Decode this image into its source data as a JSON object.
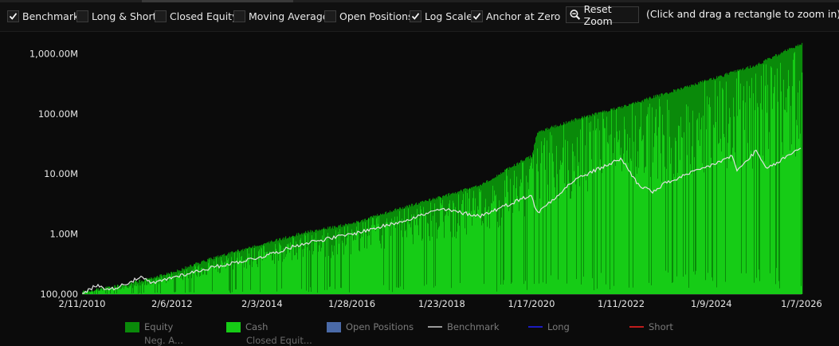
{
  "toolbar": {
    "options": [
      {
        "label": "Benchmark",
        "checked": true
      },
      {
        "label": "Long & Short",
        "checked": false
      },
      {
        "label": "Closed Equity",
        "checked": false
      },
      {
        "label": "Moving Average",
        "checked": false
      },
      {
        "label": "Open Positions",
        "checked": false
      },
      {
        "label": "Log Scale",
        "checked": true
      },
      {
        "label": "Anchor at Zero",
        "checked": true
      }
    ],
    "reset_zoom_label": "Reset Zoom",
    "hint": "(Click and drag a rectangle to zoom in)"
  },
  "legend": {
    "items": [
      {
        "label": "Equity",
        "color": "#0a8a0a",
        "kind": "swatch"
      },
      {
        "label": "Cash",
        "color": "#16cc16",
        "kind": "swatch"
      },
      {
        "label": "Open Positions",
        "color": "#4a6aa8",
        "kind": "swatch"
      },
      {
        "label": "Benchmark",
        "color": "#9a9a9a",
        "kind": "line"
      },
      {
        "label": "Long",
        "color": "#1c1cc0",
        "kind": "line"
      },
      {
        "label": "Short",
        "color": "#c01c1c",
        "kind": "line"
      }
    ],
    "second_row": [
      "Neg. A...",
      "Closed Equit..."
    ]
  },
  "chart_data": {
    "type": "area",
    "title": "",
    "xlabel": "",
    "ylabel": "",
    "y_scale": "log",
    "ylim": [
      100000,
      1600000000
    ],
    "y_ticks": [
      100000,
      1000000,
      10000000,
      100000000,
      1000000000
    ],
    "y_tick_labels": [
      "100,000",
      "1.00M",
      "10.00M",
      "100.00M",
      "1,000.00M"
    ],
    "x_tick_labels": [
      "2/11/2010",
      "2/6/2012",
      "2/3/2014",
      "1/28/2016",
      "1/23/2018",
      "1/17/2020",
      "1/11/2022",
      "1/9/2024",
      "1/7/2026"
    ],
    "grid": false,
    "colors": {
      "equity": "#0a8a0a",
      "cash": "#16cc16",
      "benchmark": "#e0e0e0"
    },
    "series": [
      {
        "name": "Equity",
        "x": [
          "2/11/2010",
          "1/2011",
          "2/6/2012",
          "1/2013",
          "2/3/2014",
          "1/2015",
          "1/28/2016",
          "1/2017",
          "1/23/2018",
          "1/2019",
          "7/2019",
          "1/17/2020",
          "3/2020",
          "1/2021",
          "1/11/2022",
          "1/2023",
          "1/9/2024",
          "1/2025",
          "1/7/2026"
        ],
        "values": [
          110000,
          140000,
          230000,
          400000,
          680000,
          1050000,
          1500000,
          2500000,
          4200000,
          7000000,
          12000000,
          20000000,
          50000000,
          80000000,
          130000000,
          220000000,
          380000000,
          650000000,
          1500000000
        ]
      },
      {
        "name": "Benchmark",
        "x": [
          "2/11/2010",
          "6/2010",
          "10/2010",
          "6/2011",
          "9/2011",
          "2/6/2012",
          "1/2013",
          "2/3/2014",
          "1/2015",
          "1/28/2016",
          "1/2017",
          "1/23/2018",
          "12/2018",
          "1/17/2020",
          "3/2020",
          "1/2021",
          "1/11/2022",
          "6/2022",
          "10/2022",
          "1/2023",
          "1/9/2024",
          "7/2024",
          "8/2024",
          "1/2025",
          "4/2025",
          "1/7/2026"
        ],
        "values": [
          100000,
          140000,
          120000,
          190000,
          150000,
          190000,
          280000,
          420000,
          700000,
          1000000,
          1500000,
          2600000,
          2000000,
          4500000,
          2200000,
          8000000,
          18000000,
          6500000,
          5000000,
          7000000,
          14000000,
          20000000,
          11000000,
          24000000,
          12000000,
          28000000
        ]
      }
    ]
  }
}
